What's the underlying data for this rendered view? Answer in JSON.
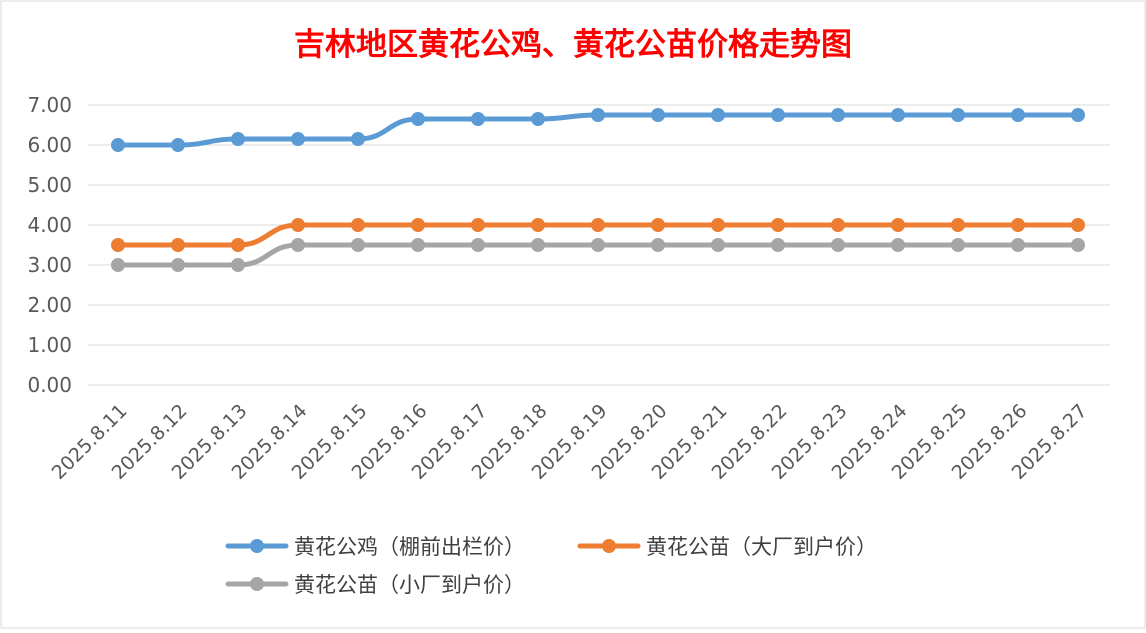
{
  "chart_data": {
    "type": "line",
    "title": "吉林地区黄花公鸡、黄花公苗价格走势图",
    "categories": [
      "2025.8.11",
      "2025.8.12",
      "2025.8.13",
      "2025.8.14",
      "2025.8.15",
      "2025.8.16",
      "2025.8.17",
      "2025.8.18",
      "2025.8.19",
      "2025.8.20",
      "2025.8.21",
      "2025.8.22",
      "2025.8.23",
      "2025.8.24",
      "2025.8.25",
      "2025.8.26",
      "2025.8.27"
    ],
    "ylim": [
      0,
      7
    ],
    "yticks": [
      "0.00",
      "1.00",
      "2.00",
      "3.00",
      "4.00",
      "5.00",
      "6.00",
      "7.00"
    ],
    "grid": true,
    "legend_position": "bottom",
    "series": [
      {
        "name": "黄花公鸡（棚前出栏价）",
        "color": "#5b9bd5",
        "values": [
          6.0,
          6.0,
          6.15,
          6.15,
          6.15,
          6.65,
          6.65,
          6.65,
          6.75,
          6.75,
          6.75,
          6.75,
          6.75,
          6.75,
          6.75,
          6.75,
          6.75
        ]
      },
      {
        "name": "黄花公苗（大厂到户价）",
        "color": "#ed7d31",
        "values": [
          3.5,
          3.5,
          3.5,
          4.0,
          4.0,
          4.0,
          4.0,
          4.0,
          4.0,
          4.0,
          4.0,
          4.0,
          4.0,
          4.0,
          4.0,
          4.0,
          4.0
        ]
      },
      {
        "name": "黄花公苗（小厂到户价）",
        "color": "#a5a5a5",
        "values": [
          3.0,
          3.0,
          3.0,
          3.5,
          3.5,
          3.5,
          3.5,
          3.5,
          3.5,
          3.5,
          3.5,
          3.5,
          3.5,
          3.5,
          3.5,
          3.5,
          3.5
        ]
      }
    ]
  }
}
